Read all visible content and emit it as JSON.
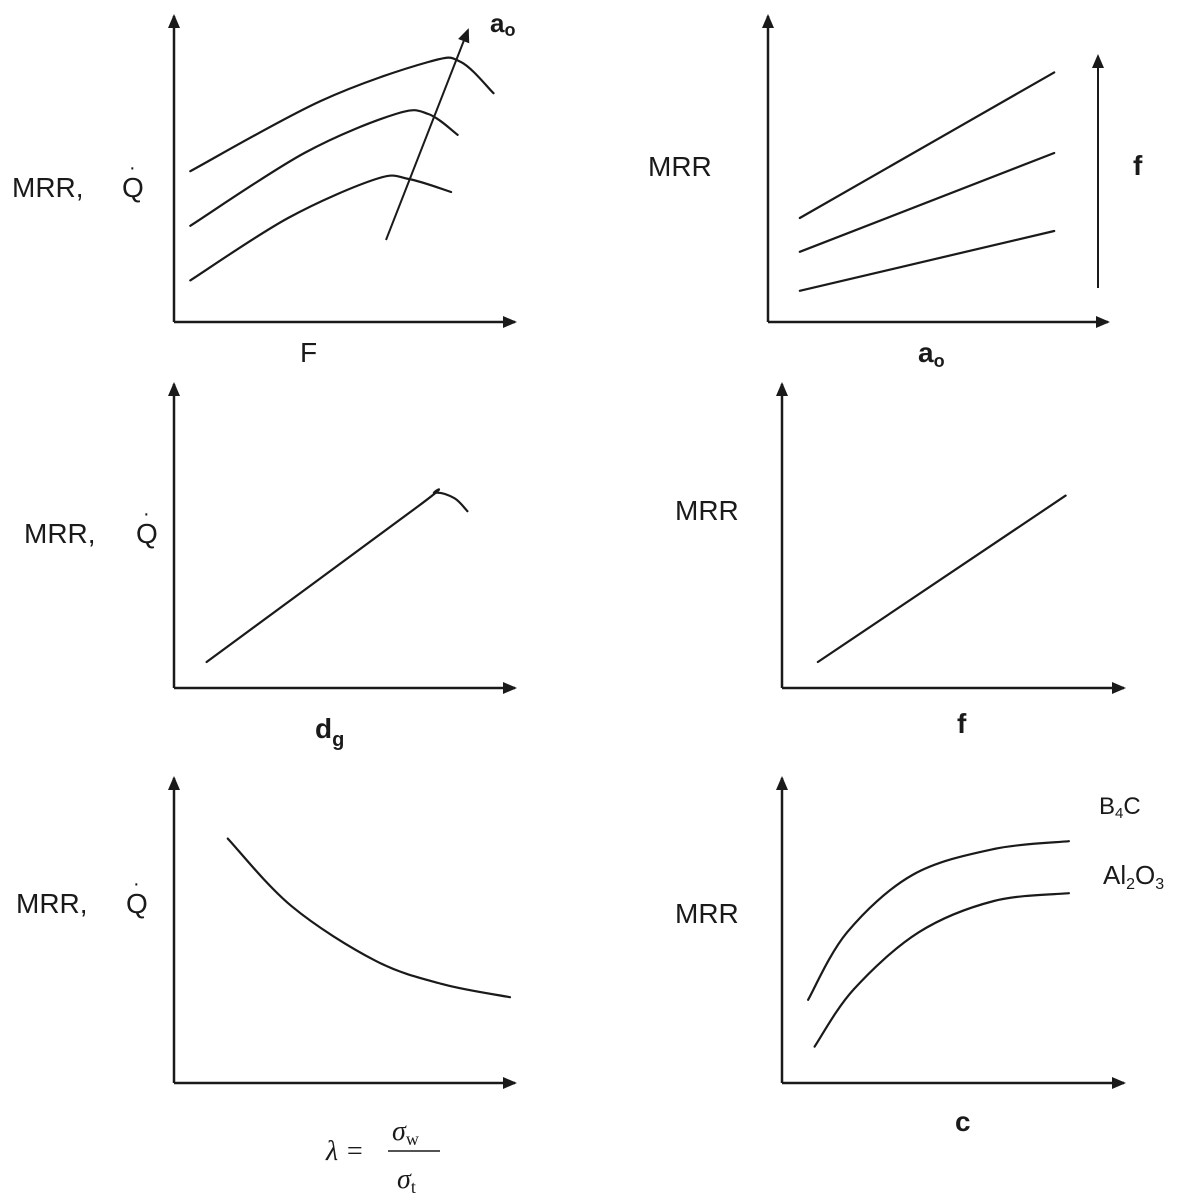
{
  "chart_data": [
    {
      "id": "p1",
      "type": "line",
      "ylabel": "MRR,",
      "ylabel_sym": "Q",
      "xlabel": "F",
      "arrow_label": "a",
      "arrow_label_sub": "o",
      "series": [
        {
          "values": [
            [
              0.05,
              0.16
            ],
            [
              0.35,
              0.4
            ],
            [
              0.62,
              0.55
            ],
            [
              0.72,
              0.55
            ],
            [
              0.85,
              0.5
            ]
          ]
        },
        {
          "values": [
            [
              0.05,
              0.37
            ],
            [
              0.4,
              0.65
            ],
            [
              0.68,
              0.8
            ],
            [
              0.78,
              0.8
            ],
            [
              0.87,
              0.72
            ]
          ]
        },
        {
          "values": [
            [
              0.05,
              0.58
            ],
            [
              0.45,
              0.85
            ],
            [
              0.78,
              1.0
            ],
            [
              0.88,
              1.0
            ],
            [
              0.98,
              0.88
            ]
          ]
        }
      ]
    },
    {
      "id": "p2",
      "type": "line",
      "ylabel": "MRR",
      "xlabel": "a",
      "xlabel_sub": "o",
      "arrow_label": "f",
      "series": [
        {
          "values": [
            [
              0.1,
              0.12
            ],
            [
              0.9,
              0.35
            ]
          ]
        },
        {
          "values": [
            [
              0.1,
              0.27
            ],
            [
              0.9,
              0.65
            ]
          ]
        },
        {
          "values": [
            [
              0.1,
              0.4
            ],
            [
              0.9,
              0.96
            ]
          ]
        }
      ]
    },
    {
      "id": "p3",
      "type": "line",
      "ylabel": "MRR,",
      "ylabel_sym": "Q",
      "xlabel": "d",
      "xlabel_sub": "g",
      "series": [
        {
          "values": [
            [
              0.1,
              0.1
            ],
            [
              0.75,
              0.7
            ],
            [
              0.8,
              0.75
            ],
            [
              0.86,
              0.73
            ],
            [
              0.9,
              0.68
            ]
          ]
        }
      ]
    },
    {
      "id": "p4",
      "type": "line",
      "ylabel": "MRR",
      "xlabel": "f",
      "series": [
        {
          "values": [
            [
              0.11,
              0.1
            ],
            [
              0.87,
              0.74
            ]
          ]
        }
      ]
    },
    {
      "id": "p5",
      "type": "line",
      "ylabel": "MRR,",
      "ylabel_sym": "Q",
      "xlabel_lambda": "λ =",
      "xlabel_num": "σ",
      "xlabel_num_sub": "w",
      "xlabel_den": "σ",
      "xlabel_den_sub": "t",
      "series": [
        {
          "values": [
            [
              0.16,
              0.94
            ],
            [
              0.35,
              0.68
            ],
            [
              0.6,
              0.47
            ],
            [
              0.8,
              0.38
            ],
            [
              1.0,
              0.33
            ]
          ]
        }
      ]
    },
    {
      "id": "p6",
      "type": "line",
      "ylabel": "MRR",
      "xlabel": "c",
      "series": [
        {
          "name": "B4C",
          "name_main": "B",
          "name_sub": "4",
          "name_tail": "C",
          "values": [
            [
              0.08,
              0.32
            ],
            [
              0.2,
              0.58
            ],
            [
              0.4,
              0.8
            ],
            [
              0.65,
              0.9
            ],
            [
              0.88,
              0.93
            ]
          ]
        },
        {
          "name": "Al2O3",
          "name_main": "Al",
          "name_sub": "2",
          "name_mid": "O",
          "name_sub2": "3",
          "values": [
            [
              0.1,
              0.14
            ],
            [
              0.22,
              0.36
            ],
            [
              0.42,
              0.58
            ],
            [
              0.65,
              0.7
            ],
            [
              0.88,
              0.73
            ]
          ]
        }
      ]
    }
  ]
}
